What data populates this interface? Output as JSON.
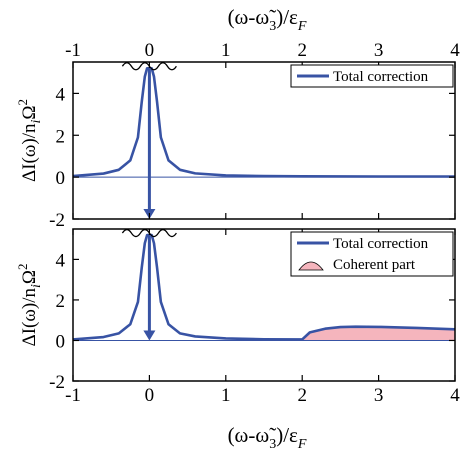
{
  "chart_data": [
    {
      "type": "line",
      "xlabel": "(ω-ω̃₃)/ε_F",
      "ylabel": "ΔI(ω)/n_iΩ²",
      "xlim": [
        -1,
        4
      ],
      "ylim": [
        -2,
        5.5
      ],
      "x_ticks": [
        "-1",
        "0",
        "1",
        "2",
        "3",
        "4"
      ],
      "y_ticks": [
        "-2",
        "0",
        "2",
        "4"
      ],
      "x_axis_position": "top",
      "legend_position": "top-right",
      "series": [
        {
          "name": "Total correction",
          "color": "#3853a4",
          "x": [
            -1,
            -0.6,
            -0.4,
            -0.25,
            -0.15,
            -0.1,
            -0.06,
            -0.03,
            0.03,
            0.06,
            0.1,
            0.15,
            0.25,
            0.4,
            0.6,
            1,
            1.5,
            2,
            3,
            4
          ],
          "y": [
            0.05,
            0.17,
            0.35,
            0.8,
            1.9,
            3.6,
            4.8,
            5.2,
            5.2,
            4.8,
            3.6,
            1.9,
            0.8,
            0.35,
            0.18,
            0.08,
            0.05,
            0.04,
            0.03,
            0.03
          ]
        }
      ],
      "annotations": {
        "peak_marker_x": 0,
        "arrow_from_y": 5.2,
        "arrow_to_y": -2,
        "baseline_y": 0
      }
    },
    {
      "type": "area",
      "xlabel": "(ω-ω̃₃)/ε_F",
      "ylabel": "ΔI(ω)/n_iΩ²",
      "xlim": [
        -1,
        4
      ],
      "ylim": [
        -2,
        5.5
      ],
      "x_ticks": [
        "-1",
        "0",
        "1",
        "2",
        "3",
        "4"
      ],
      "y_ticks": [
        "-2",
        "0",
        "2",
        "4"
      ],
      "x_axis_position": "bottom",
      "legend_position": "top-right",
      "series": [
        {
          "name": "Total correction",
          "color": "#3853a4",
          "x": [
            -1,
            -0.6,
            -0.4,
            -0.25,
            -0.15,
            -0.1,
            -0.06,
            -0.03,
            0.03,
            0.06,
            0.1,
            0.15,
            0.25,
            0.4,
            0.6,
            1,
            1.5,
            1.98,
            2,
            2.1,
            2.3,
            2.5,
            2.7,
            3,
            3.5,
            4
          ],
          "y": [
            0.05,
            0.17,
            0.35,
            0.8,
            1.9,
            3.6,
            4.8,
            5.2,
            5.2,
            4.8,
            3.6,
            1.9,
            0.8,
            0.35,
            0.2,
            0.1,
            0.06,
            0.05,
            0.05,
            0.4,
            0.58,
            0.66,
            0.68,
            0.67,
            0.62,
            0.55
          ]
        },
        {
          "name": "Coherent part",
          "color": "#f5b5bd",
          "x": [
            2,
            2.1,
            2.3,
            2.5,
            2.7,
            3,
            3.5,
            4
          ],
          "y": [
            0,
            0.4,
            0.58,
            0.66,
            0.68,
            0.67,
            0.62,
            0.55
          ]
        }
      ],
      "annotations": {
        "peak_marker_x": 0,
        "arrow_from_y": 5.2,
        "arrow_to_y": 0,
        "baseline_y": 0
      }
    }
  ],
  "top_xlabel": {
    "prefix": "(ω-ω̃",
    "sub": "3",
    "mid": ")/ε",
    "sub2": "F"
  },
  "bottom_xlabel": {
    "prefix": "(ω-ω̃",
    "sub": "3",
    "mid": ")/ε",
    "sub2": "F"
  },
  "ylabel_parts": {
    "a": "ΔI(ω)/n",
    "i": "i",
    "b": "Ω",
    "sup": "2"
  },
  "colors": {
    "curve": "#3853a4",
    "fill": "#f5b5bd",
    "baseline": "#3853a4",
    "frame": "#000000"
  }
}
